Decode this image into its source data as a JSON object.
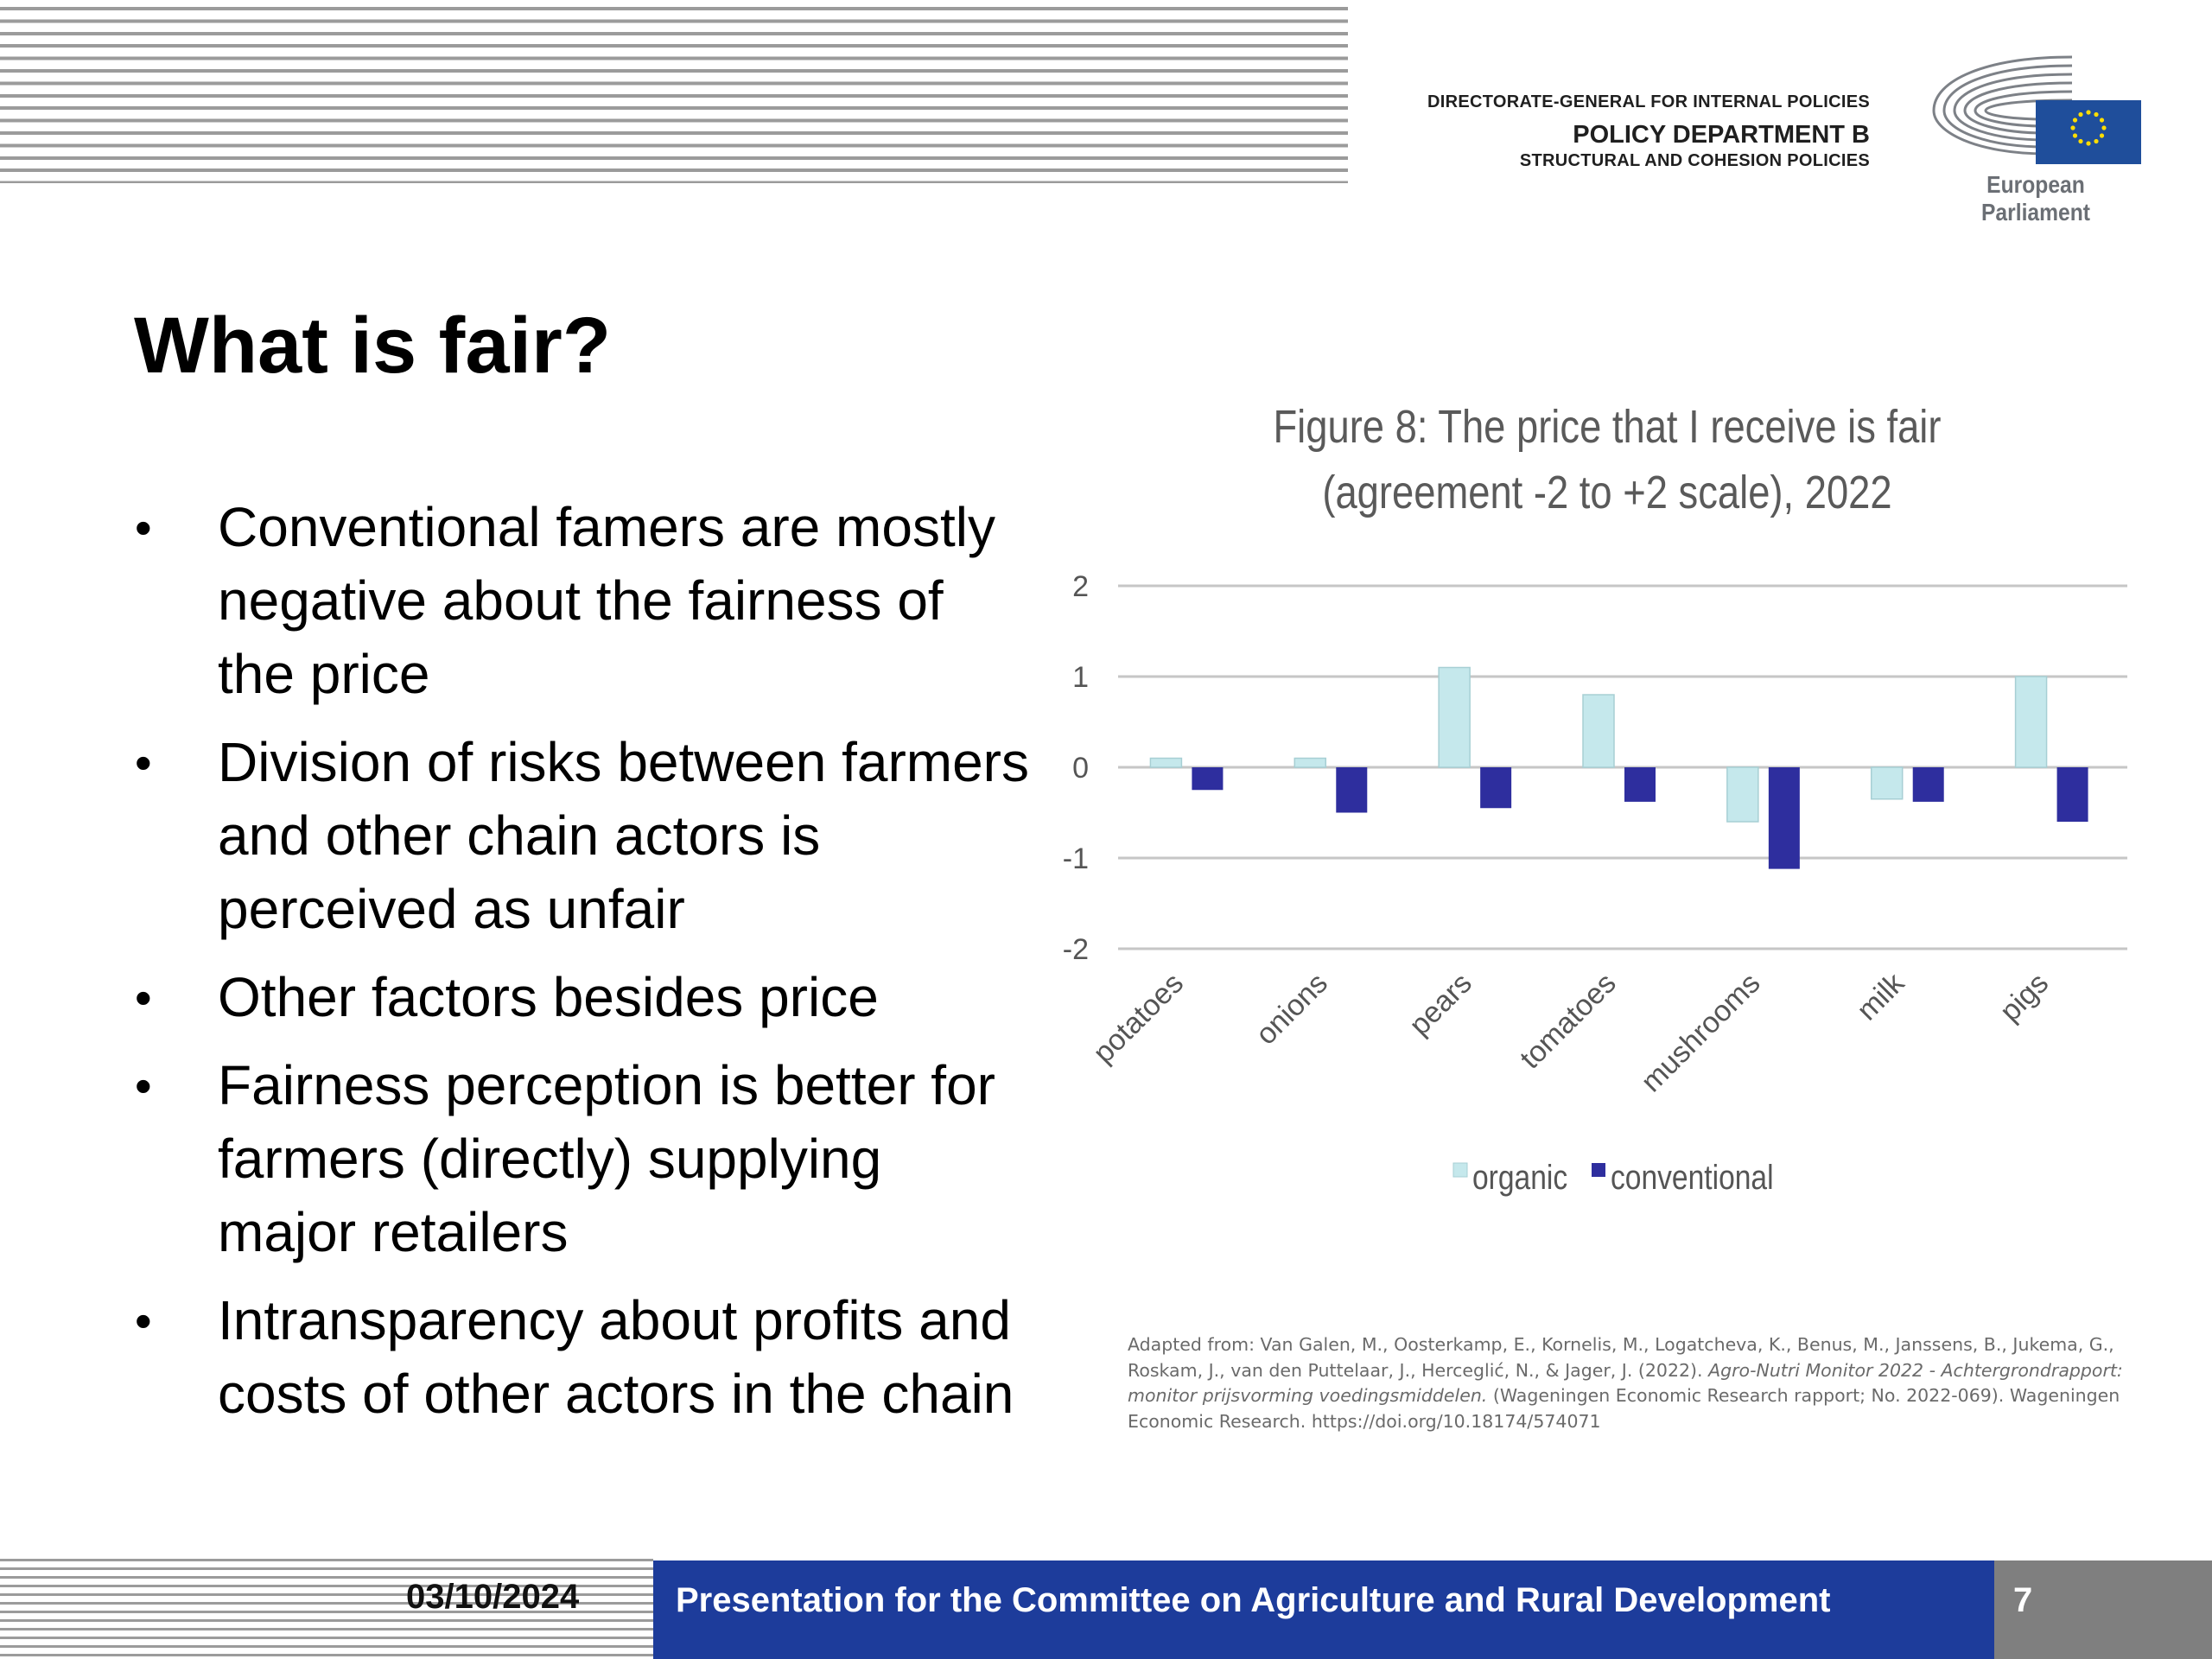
{
  "header": {
    "directorate": "DIRECTORATE-GENERAL FOR INTERNAL POLICIES",
    "department": "POLICY DEPARTMENT B",
    "subdepartment": "STRUCTURAL AND COHESION POLICIES",
    "institution": "European Parliament"
  },
  "slide": {
    "title": "What is fair?",
    "bullets": [
      "Conventional famers are mostly negative about the fairness of the price",
      "Division of risks between farmers and other chain actors is perceived as unfair",
      "Other factors besides price",
      "Fairness perception is better for farmers (directly) supplying major retailers",
      "Intransparency about profits and costs of other actors in the chain"
    ]
  },
  "chart_data": {
    "type": "bar",
    "title": "Figure 8: The price that I receive is fair (agreement -2 to +2 scale), 2022",
    "title_lines": [
      "Figure 8: The price that I receive is fair",
      "(agreement -2 to +2 scale), 2022"
    ],
    "categories": [
      "potatoes",
      "onions",
      "pears",
      "tomatoes",
      "mushrooms",
      "milk",
      "pigs"
    ],
    "series": [
      {
        "name": "organic",
        "values": [
          0.1,
          0.1,
          1.1,
          0.8,
          -0.6,
          -0.35,
          1.0
        ],
        "color": "#c5e8ec"
      },
      {
        "name": "conventional",
        "values": [
          -0.25,
          -0.5,
          -0.45,
          -0.38,
          -1.12,
          -0.38,
          -0.6
        ],
        "color": "#2e2e9e"
      }
    ],
    "ylim": [
      -2,
      2
    ],
    "yticks": [
      2,
      1,
      0,
      -1,
      -2
    ],
    "grid": true,
    "legend": "bottom"
  },
  "source": {
    "part1": "Adapted from: Van Galen, M., Oosterkamp, E., Kornelis, M., Logatcheva, K., Benus, M., Janssens, B., Jukema, G., Roskam, J., van den Puttelaar, J., Herceglić, N., & Jager, J. (2022). ",
    "italic": "Agro-Nutri Monitor 2022 - Achtergrondrapport: monitor prijsvorming voedingsmiddelen.",
    "part2": " (Wageningen Economic Research rapport; No. 2022-069). Wageningen Economic Research. https://doi.org/10.18174/574071"
  },
  "footer": {
    "date": "03/10/2024",
    "presentation": "Presentation for the Committee on Agriculture and Rural Development",
    "page": "7"
  },
  "colors": {
    "footer_blue": "#1d3c9b",
    "footer_grey": "#7f7f7f",
    "eu_blue": "#1f4e9b",
    "eu_gold": "#ffdd00"
  }
}
